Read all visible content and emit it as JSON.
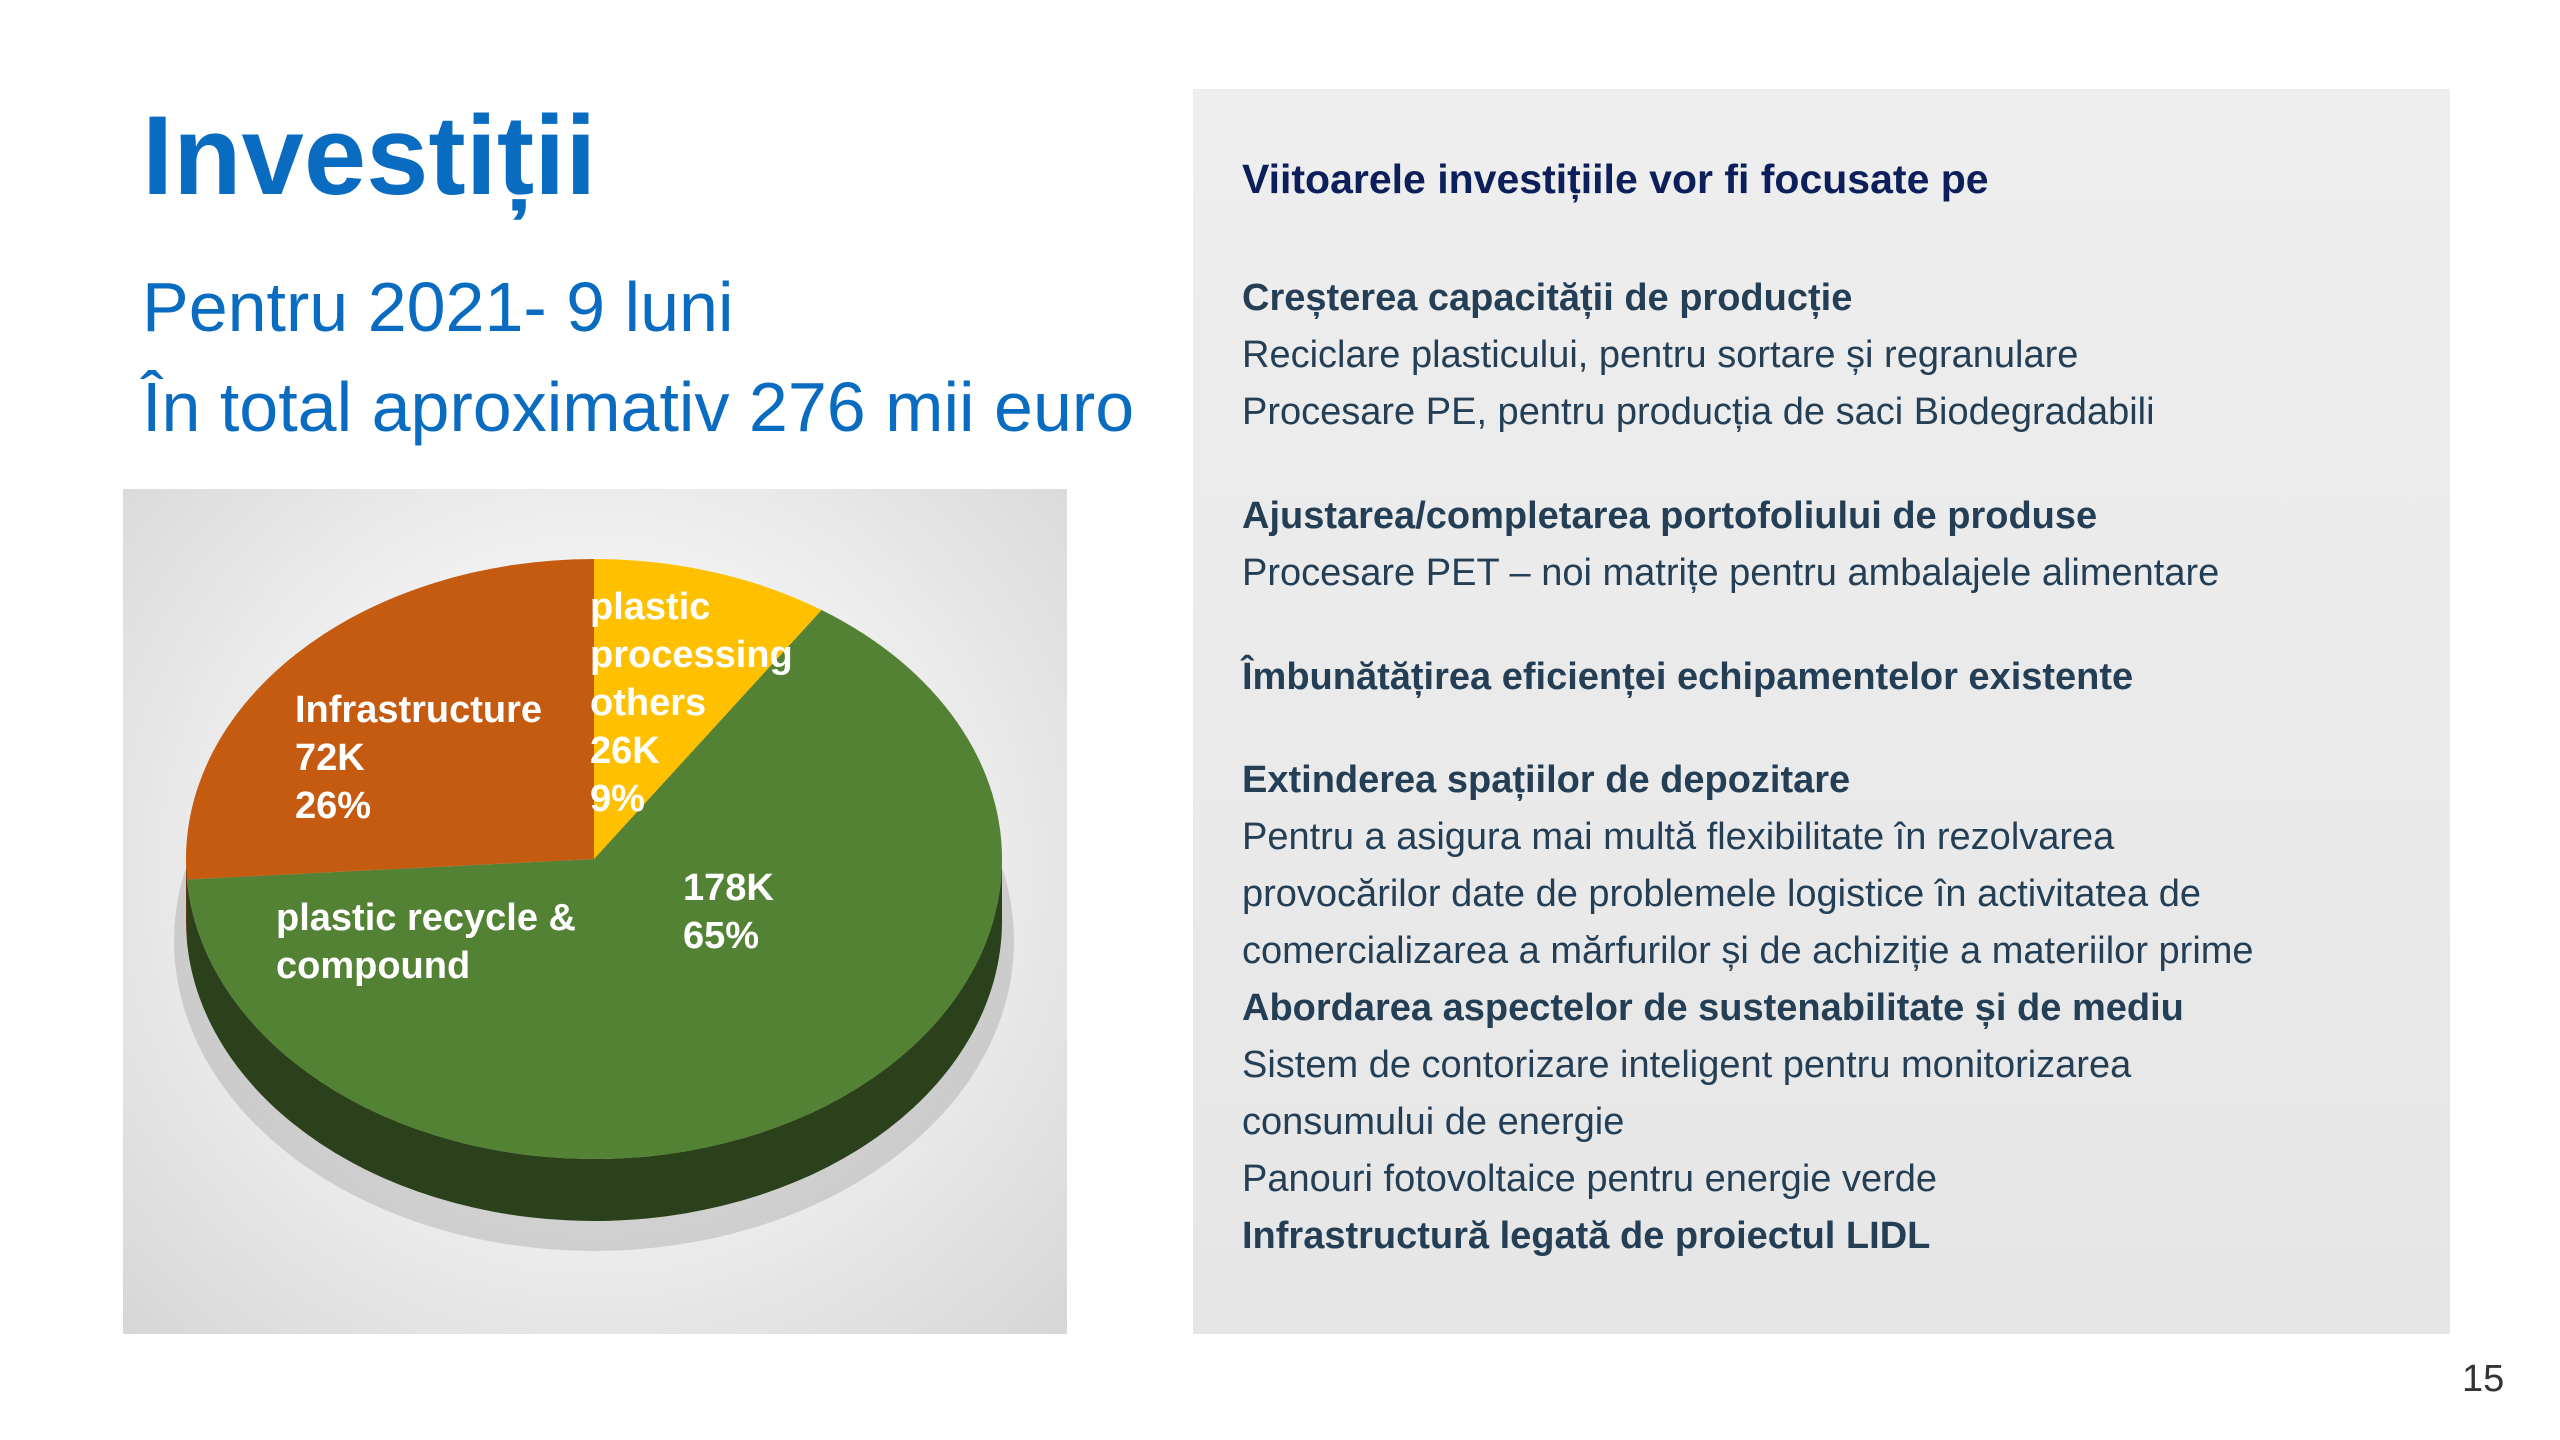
{
  "title": "Investiții",
  "subtitle_lines": [
    "Pentru 2021- 9 luni",
    "În total aproximativ 276 mii euro"
  ],
  "chart_data": {
    "type": "pie",
    "style": "3d",
    "slices": [
      {
        "label": "plastic processing others",
        "value": 26,
        "value_label": "26K",
        "percent": 9,
        "percent_label": "9%",
        "color": "#ffc000"
      },
      {
        "label": "plastic recycle & compound",
        "value": 178,
        "value_label": "178K",
        "percent": 65,
        "percent_label": "65%",
        "color": "#548235"
      },
      {
        "label": "Infrastructure",
        "value": 72,
        "value_label": "72K",
        "percent": 26,
        "percent_label": "26%",
        "color": "#c55a11"
      }
    ],
    "unit": "thousand euro"
  },
  "panel": {
    "heading": "Viitoarele investițiile vor fi focusate pe",
    "lines": [
      {
        "text": "Creșterea capacității de producție",
        "bold": true
      },
      {
        "text": "Reciclare plasticului, pentru sortare și regranulare",
        "bold": false
      },
      {
        "text": "Procesare PE, pentru producția de saci Biodegradabili",
        "bold": false
      },
      {
        "text": "Ajustarea/completarea portofoliului de produse",
        "bold": true
      },
      {
        "text": "Procesare PET – noi matrițe pentru ambalajele alimentare",
        "bold": false
      },
      {
        "text": "Îmbunătățirea eficienței echipamentelor existente",
        "bold": true
      },
      {
        "text": "Extinderea spațiilor de depozitare",
        "bold": true
      },
      {
        "text": "Pentru a asigura mai multă flexibilitate în rezolvarea",
        "bold": false
      },
      {
        "text": "provocărilor date de problemele logistice în activitatea de",
        "bold": false
      },
      {
        "text": "comercializarea a mărfurilor și de achiziție a materiilor prime",
        "bold": false
      },
      {
        "text": "Abordarea aspectelor de sustenabilitate și de mediu",
        "bold": true
      },
      {
        "text": "Sistem de contorizare inteligent pentru monitorizarea",
        "bold": false
      },
      {
        "text": "consumului de energie",
        "bold": false
      },
      {
        "text": "Panouri fotovoltaice pentru energie verde",
        "bold": false
      },
      {
        "text": "Infrastructură legată de proiectul LIDL",
        "bold": true
      }
    ]
  },
  "page_number": "15"
}
